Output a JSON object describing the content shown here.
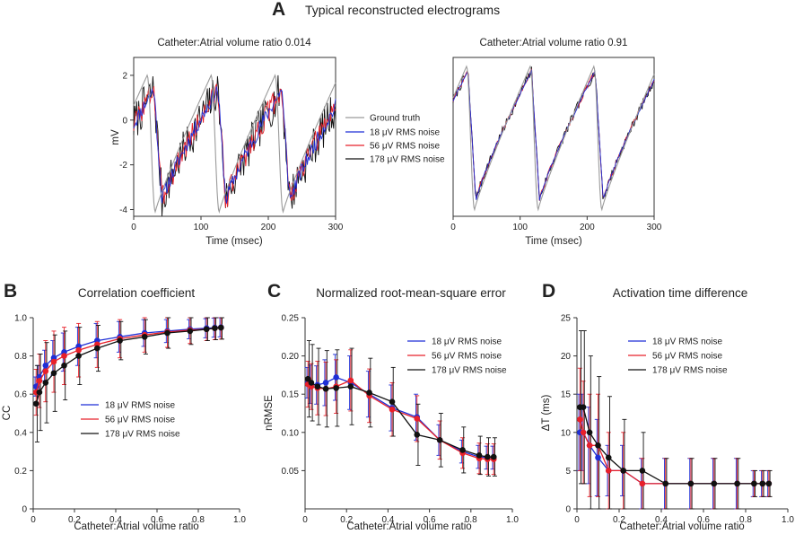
{
  "figure": {
    "panel_a_letter": "A",
    "panel_a_title": "Typical reconstructed electrograms",
    "panel_b_letter": "B",
    "panel_c_letter": "C",
    "panel_d_letter": "D"
  },
  "colors": {
    "ground_truth": "#9a9a9a",
    "noise18": "#1f2fd6",
    "noise56": "#e8202a",
    "noise178": "#111111"
  },
  "chart_data": [
    {
      "id": "A-left",
      "type": "line",
      "title": "Catheter:Atrial volume ratio 0.014",
      "xlabel": "Time (msec)",
      "ylabel": "mV",
      "xlim": [
        0,
        300
      ],
      "ylim": [
        -4.3,
        2.8
      ],
      "xticks": [
        "0",
        "100",
        "200",
        "300"
      ],
      "yticks": [
        "2",
        "0",
        "-2",
        "-4"
      ],
      "legend": [
        "Ground truth",
        "18 μV RMS noise",
        "56 μV RMS noise",
        "178 μV RMS noise"
      ],
      "legend_position": "right",
      "period_ms": 95,
      "ground_truth_min": -4.1,
      "ground_truth_peak": 2.0
    },
    {
      "id": "A-right",
      "type": "line",
      "title": "Catheter:Atrial volume ratio 0.91",
      "xlabel": "Time (msec)",
      "ylabel": "",
      "xlim": [
        0,
        300
      ],
      "ylim": [
        -4.3,
        2.8
      ],
      "xticks": [
        "0",
        "100",
        "200",
        "300"
      ],
      "period_ms": 95,
      "ground_truth_min": -4.0,
      "ground_truth_peak": 2.4
    },
    {
      "id": "B",
      "type": "line",
      "title": "Correlation coefficient",
      "xlabel": "Catheter:Atrial volume ratio",
      "ylabel": "CC",
      "xlim": [
        0,
        1.0
      ],
      "ylim": [
        0,
        1.0
      ],
      "xticks": [
        "0",
        "0.2",
        "0.4",
        "0.6",
        "0.8",
        "1.0"
      ],
      "yticks": [
        "0",
        "0.2",
        "0.4",
        "0.6",
        "0.8",
        "1.0"
      ],
      "legend_position": "center-right",
      "x": [
        0.014,
        0.03,
        0.06,
        0.1,
        0.15,
        0.22,
        0.31,
        0.42,
        0.54,
        0.65,
        0.76,
        0.84,
        0.88,
        0.91
      ],
      "series": [
        {
          "name": "18 μV RMS noise",
          "values": [
            0.64,
            0.69,
            0.75,
            0.79,
            0.82,
            0.85,
            0.88,
            0.9,
            0.92,
            0.93,
            0.94,
            0.945,
            0.948,
            0.95
          ],
          "err": [
            0.05,
            0.06,
            0.08,
            0.09,
            0.1,
            0.1,
            0.09,
            0.08,
            0.07,
            0.06,
            0.05,
            0.05,
            0.05,
            0.05
          ]
        },
        {
          "name": "56 μV RMS noise",
          "values": [
            0.61,
            0.67,
            0.72,
            0.77,
            0.8,
            0.83,
            0.86,
            0.89,
            0.91,
            0.925,
            0.935,
            0.94,
            0.945,
            0.948
          ],
          "err": [
            0.12,
            0.14,
            0.16,
            0.16,
            0.15,
            0.14,
            0.12,
            0.1,
            0.09,
            0.08,
            0.07,
            0.06,
            0.06,
            0.06
          ]
        },
        {
          "name": "178 μV RMS noise",
          "values": [
            0.55,
            0.61,
            0.66,
            0.71,
            0.75,
            0.8,
            0.84,
            0.88,
            0.9,
            0.92,
            0.93,
            0.94,
            0.945,
            0.948
          ],
          "err": [
            0.2,
            0.2,
            0.21,
            0.2,
            0.18,
            0.15,
            0.12,
            0.1,
            0.09,
            0.08,
            0.07,
            0.06,
            0.06,
            0.06
          ]
        }
      ]
    },
    {
      "id": "C",
      "type": "line",
      "title": "Normalized root-mean-square error",
      "xlabel": "Catheter:Atrial volume ratio",
      "ylabel": "nRMSE",
      "xlim": [
        0,
        1.0
      ],
      "ylim": [
        0,
        0.25
      ],
      "xticks": [
        "0",
        "0.2",
        "0.4",
        "0.6",
        "0.8",
        "1.0"
      ],
      "yticks": [
        "0.05",
        "0.10",
        "0.15",
        "0.20",
        "0.25"
      ],
      "legend_position": "top-right",
      "x": [
        0.014,
        0.03,
        0.06,
        0.1,
        0.15,
        0.22,
        0.31,
        0.42,
        0.54,
        0.65,
        0.76,
        0.84,
        0.88,
        0.91
      ],
      "series": [
        {
          "name": "18 μV RMS noise",
          "values": [
            0.165,
            0.163,
            0.162,
            0.165,
            0.172,
            0.165,
            0.15,
            0.132,
            0.12,
            0.09,
            0.075,
            0.068,
            0.067,
            0.067
          ],
          "err": [
            0.02,
            0.025,
            0.025,
            0.03,
            0.03,
            0.035,
            0.03,
            0.03,
            0.03,
            0.02,
            0.015,
            0.015,
            0.015,
            0.015
          ]
        },
        {
          "name": "56 μV RMS noise",
          "values": [
            0.163,
            0.16,
            0.158,
            0.157,
            0.16,
            0.168,
            0.148,
            0.13,
            0.118,
            0.09,
            0.073,
            0.066,
            0.065,
            0.065
          ],
          "err": [
            0.03,
            0.03,
            0.035,
            0.035,
            0.035,
            0.04,
            0.035,
            0.035,
            0.03,
            0.025,
            0.02,
            0.02,
            0.02,
            0.02
          ]
        },
        {
          "name": "178 μV RMS noise",
          "values": [
            0.17,
            0.165,
            0.16,
            0.157,
            0.158,
            0.16,
            0.152,
            0.14,
            0.097,
            0.09,
            0.077,
            0.07,
            0.068,
            0.068
          ],
          "err": [
            0.05,
            0.05,
            0.05,
            0.05,
            0.05,
            0.05,
            0.045,
            0.045,
            0.04,
            0.035,
            0.03,
            0.025,
            0.025,
            0.025
          ]
        }
      ]
    },
    {
      "id": "D",
      "type": "line",
      "title": "Activation time difference",
      "xlabel": "Catheter:Atrial volume ratio",
      "ylabel": "ΔT (ms)",
      "xlim": [
        0,
        1.0
      ],
      "ylim": [
        0,
        25
      ],
      "xticks": [
        "0",
        "0.2",
        "0.4",
        "0.6",
        "0.8",
        "1.0"
      ],
      "yticks": [
        "0",
        "5",
        "10",
        "15",
        "20",
        "25"
      ],
      "legend_position": "top-right",
      "x": [
        0.014,
        0.03,
        0.06,
        0.1,
        0.15,
        0.22,
        0.31,
        0.42,
        0.54,
        0.65,
        0.76,
        0.84,
        0.88,
        0.91
      ],
      "series": [
        {
          "name": "18 μV RMS noise",
          "values": [
            10,
            10,
            8.3,
            6.7,
            5,
            5,
            3.3,
            3.3,
            3.3,
            3.3,
            3.3,
            3.3,
            3.3,
            3.3
          ],
          "err": [
            5,
            5,
            5,
            5,
            3.3,
            3.3,
            3.3,
            3.3,
            3.3,
            3.3,
            3.3,
            1.7,
            1.7,
            1.7
          ]
        },
        {
          "name": "56 μV RMS noise",
          "values": [
            11.7,
            10,
            8.3,
            8.3,
            5,
            5,
            3.3,
            3.3,
            3.3,
            3.3,
            3.3,
            3.3,
            3.3,
            3.3
          ],
          "err": [
            6.7,
            6.7,
            6.7,
            6.7,
            5,
            5,
            3.3,
            3.3,
            3.3,
            3.3,
            3.3,
            1.7,
            1.7,
            1.7
          ]
        },
        {
          "name": "178 μV RMS noise",
          "values": [
            13.3,
            13.3,
            10,
            8.3,
            6.7,
            5,
            5,
            3.3,
            3.3,
            3.3,
            3.3,
            3.3,
            3.3,
            3.3
          ],
          "err": [
            10,
            10,
            10,
            9,
            8,
            6.7,
            5,
            3.3,
            3.3,
            3.3,
            3.3,
            1.7,
            1.7,
            1.7
          ]
        }
      ]
    }
  ]
}
